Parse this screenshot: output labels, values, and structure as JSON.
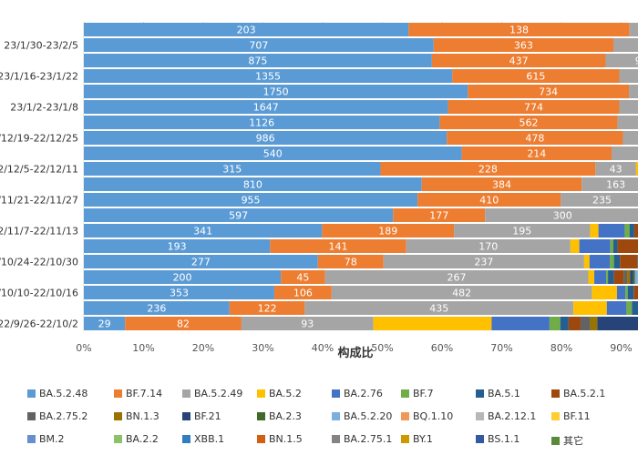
{
  "chart_data": {
    "type": "bar",
    "orientation": "horizontal-stacked-percent",
    "xlabel": "构成比",
    "xlim": [
      0,
      100
    ],
    "x_ticks": [
      "0%",
      "10%",
      "20%",
      "30%",
      "40%",
      "50%",
      "60%",
      "70%",
      "80%",
      "90%"
    ],
    "grid": true,
    "legend_position": "bottom",
    "categories": [
      "",
      "23/1/30-23/2/5",
      "",
      "23/1/16-23/1/22",
      "",
      "23/1/2-23/1/8",
      "",
      "22/12/19-22/12/25",
      "",
      "22/12/5-22/12/11",
      "",
      "22/11/21-22/11/27",
      "",
      "22/11/7-22/11/13",
      "",
      "22/10/24-22/10/30",
      "",
      "22/10/10-22/10/16",
      "",
      "22/9/26-22/10/2"
    ],
    "series": [
      {
        "name": "BA.5.2.48",
        "color": "#5b9bd5",
        "values": [
          54.4,
          58.6,
          58.3,
          61.7,
          64.3,
          61.0,
          59.6,
          60.8,
          63.3,
          49.7,
          56.6,
          55.9,
          51.8,
          39.9,
          31.2,
          39.2,
          33.0,
          31.9,
          24.4,
          6.9
        ],
        "labels": [
          "203",
          "707",
          "875",
          "1355",
          "1750",
          "1647",
          "1126",
          "986",
          "540",
          "315",
          "810",
          "955",
          "597",
          "341",
          "193",
          "277",
          "200",
          "353",
          "236",
          "29"
        ]
      },
      {
        "name": "BF.7.14",
        "color": "#ed7d31",
        "values": [
          37.0,
          30.1,
          29.1,
          28.0,
          27.0,
          28.7,
          29.8,
          29.5,
          25.1,
          36.0,
          26.8,
          24.0,
          15.4,
          22.1,
          22.8,
          11.0,
          7.4,
          9.6,
          12.6,
          19.5
        ],
        "labels": [
          "138",
          "363",
          "437",
          "615",
          "734",
          "774",
          "562",
          "478",
          "214",
          "228",
          "384",
          "410",
          "177",
          "189",
          "141",
          "78",
          "45",
          "106",
          "122",
          "82"
        ]
      },
      {
        "name": "BA.5.2.49",
        "color": "#a5a5a5",
        "values": [
          7.5,
          10.5,
          12.0,
          10.0,
          8.2,
          10.0,
          10.0,
          9.4,
          9.6,
          6.8,
          11.4,
          13.8,
          26.0,
          22.8,
          27.5,
          33.6,
          44.1,
          43.6,
          45.0,
          22.1
        ],
        "labels": [
          "",
          "",
          "98",
          "",
          "",
          "",
          "",
          "",
          "",
          "43",
          "163",
          "235",
          "300",
          "195",
          "170",
          "237",
          "267",
          "482",
          "435",
          "93"
        ]
      },
      {
        "name": "BA.5.2",
        "color": "#ffc000",
        "values": [
          0,
          0,
          0,
          0,
          0,
          0,
          0,
          0,
          0,
          1.5,
          0,
          0,
          0,
          1.4,
          1.5,
          0.9,
          1.0,
          4.2,
          5.6,
          19.8
        ],
        "labels": []
      },
      {
        "name": "BA.2.76",
        "color": "#4472c4",
        "values": [
          0,
          0,
          0,
          0,
          0,
          0,
          0,
          0,
          0,
          0,
          0,
          0,
          0,
          4.4,
          5.2,
          3.4,
          2.0,
          1.4,
          3.3,
          9.7
        ],
        "labels": []
      },
      {
        "name": "BF.7",
        "color": "#70ad47",
        "values": [
          0,
          0,
          0,
          0,
          0,
          0,
          0,
          0,
          0,
          0,
          0,
          0,
          0,
          0.8,
          0.5,
          0.7,
          0.3,
          0.4,
          0.9,
          1.8
        ],
        "labels": []
      },
      {
        "name": "BA.5.1",
        "color": "#255e91",
        "values": [
          0,
          0,
          0,
          0,
          0,
          0,
          0,
          0,
          0,
          0,
          0,
          0,
          0,
          0.8,
          0.7,
          1.0,
          1.0,
          1.0,
          1.2,
          1.4
        ],
        "labels": []
      },
      {
        "name": "BA.5.2.1",
        "color": "#9e480e",
        "values": [
          0,
          0,
          0,
          0,
          0,
          0,
          0,
          0,
          0,
          0,
          0,
          0,
          0,
          1.0,
          4.1,
          2.9,
          1.6,
          1.0,
          0.8,
          2.0
        ],
        "labels": []
      },
      {
        "name": "BA.2.75.2",
        "color": "#636363",
        "values": [
          0,
          0,
          0,
          0,
          0,
          0,
          0,
          0,
          0,
          0,
          0,
          0,
          0,
          0.5,
          0.4,
          0.4,
          0.6,
          0.5,
          0.4,
          1.6
        ],
        "labels": []
      },
      {
        "name": "BN.1.3",
        "color": "#997300",
        "values": [
          0,
          0,
          0,
          0,
          0,
          0,
          0,
          0,
          0,
          0,
          0,
          0,
          0,
          0.5,
          0.3,
          0.4,
          0.5,
          0.5,
          0.4,
          1.2
        ],
        "labels": []
      },
      {
        "name": "BF.21",
        "color": "#264478",
        "values": [
          0,
          0,
          0,
          0,
          0,
          0,
          0,
          0,
          0,
          0,
          0,
          0,
          0,
          0.5,
          0.5,
          0.5,
          0.5,
          0.5,
          0.5,
          9.5
        ],
        "labels": []
      },
      {
        "name": "BA.2.3",
        "color": "#43682b",
        "values": [
          0,
          0,
          0,
          0,
          0,
          0,
          0,
          0,
          0,
          0,
          0,
          0,
          0,
          0.3,
          0.3,
          0.3,
          0.3,
          0.3,
          0.3,
          0.5
        ],
        "labels": []
      },
      {
        "name": "BA.5.2.20",
        "color": "#7cafdd",
        "values": [
          0.3,
          0.2,
          0.2,
          0.1,
          0.1,
          0.1,
          0.2,
          0.1,
          0.3,
          0.6,
          0.3,
          0.6,
          0.8,
          0.3,
          0.4,
          0.3,
          0.5,
          0.4,
          0.6,
          0.9
        ],
        "labels": []
      },
      {
        "name": "BQ.1.10",
        "color": "#f1975a",
        "values": [
          0.3,
          0.2,
          0.1,
          0.1,
          0.1,
          0.1,
          0.2,
          0.1,
          0.3,
          0.4,
          0.3,
          0.3,
          0.5,
          0.3,
          0.3,
          0.3,
          0.3,
          0.3,
          0.3,
          0.3
        ],
        "labels": []
      },
      {
        "name": "BA.2.12.1",
        "color": "#b7b7b7",
        "values": [
          0.2,
          0.2,
          0.1,
          0.05,
          0.1,
          0.05,
          0.1,
          0.05,
          0.5,
          0.5,
          0.6,
          0.5,
          0.8,
          0.3,
          0.3,
          0.3,
          0.3,
          0.3,
          0.3,
          0.3
        ],
        "labels": []
      },
      {
        "name": "BF.11",
        "color": "#ffcd33",
        "values": [
          0,
          0,
          0,
          0,
          0,
          0,
          0,
          0,
          0,
          0.5,
          0,
          0,
          0,
          0.2,
          0.2,
          0.2,
          0.2,
          0.2,
          0.2,
          0.2
        ],
        "labels": []
      },
      {
        "name": "BM.2",
        "color": "#698ed0",
        "values": [
          0,
          0,
          0,
          0,
          0,
          0,
          0,
          0,
          0,
          0.2,
          0,
          0,
          0,
          0.2,
          0.2,
          0.2,
          0.2,
          0.2,
          0.2,
          0.2
        ],
        "labels": []
      },
      {
        "name": "BA.2.2",
        "color": "#8cc168",
        "values": [
          0,
          0,
          0,
          0,
          0,
          0,
          0,
          0,
          0,
          0.2,
          0,
          0,
          0,
          0.2,
          0.2,
          0.2,
          0.2,
          0.2,
          0.2,
          0.2
        ],
        "labels": []
      },
      {
        "name": "XBB.1",
        "color": "#327dc2",
        "values": [
          0,
          0,
          0,
          0,
          0,
          0,
          0,
          0,
          0,
          0.2,
          0,
          0,
          0,
          0.2,
          0.2,
          0.2,
          0.2,
          0.2,
          0.2,
          0.2
        ],
        "labels": []
      },
      {
        "name": "BN.1.5",
        "color": "#d26012",
        "values": [
          0,
          0,
          0,
          0,
          0,
          0,
          0,
          0,
          0,
          0.2,
          0,
          0,
          0,
          0.2,
          0.2,
          0.2,
          0.2,
          0.2,
          0.2,
          0.2
        ],
        "labels": []
      },
      {
        "name": "BA.2.75.1",
        "color": "#848484",
        "values": [
          0,
          0,
          0,
          0,
          0,
          0,
          0,
          0,
          0,
          0.2,
          0,
          0,
          0,
          0.2,
          0.2,
          0.2,
          0.2,
          0.2,
          0.2,
          0.2
        ],
        "labels": []
      },
      {
        "name": "BY.1",
        "color": "#cc9a00",
        "values": [
          0,
          0,
          0,
          0,
          0,
          0,
          0,
          0,
          0,
          0.2,
          0,
          0,
          0,
          0.2,
          0.2,
          0.2,
          0.2,
          0.2,
          0.2,
          0.2
        ],
        "labels": []
      },
      {
        "name": "BS.1.1",
        "color": "#335aa1",
        "values": [
          0,
          0,
          0,
          0,
          0,
          0,
          0,
          0,
          0,
          0.2,
          0,
          0,
          0,
          0.2,
          0.2,
          0.2,
          0.2,
          0.2,
          0.2,
          0.2
        ],
        "labels": []
      },
      {
        "name": "其它",
        "color": "#5a8a39",
        "values": [
          0.3,
          0.2,
          0.2,
          0.05,
          0.2,
          0.05,
          0.1,
          0.05,
          0.9,
          2.6,
          0.0,
          0.0,
          0.0,
          1.6,
          2.6,
          1.8,
          1.7,
          1.3,
          1.4,
          0.7
        ],
        "labels": []
      }
    ]
  }
}
